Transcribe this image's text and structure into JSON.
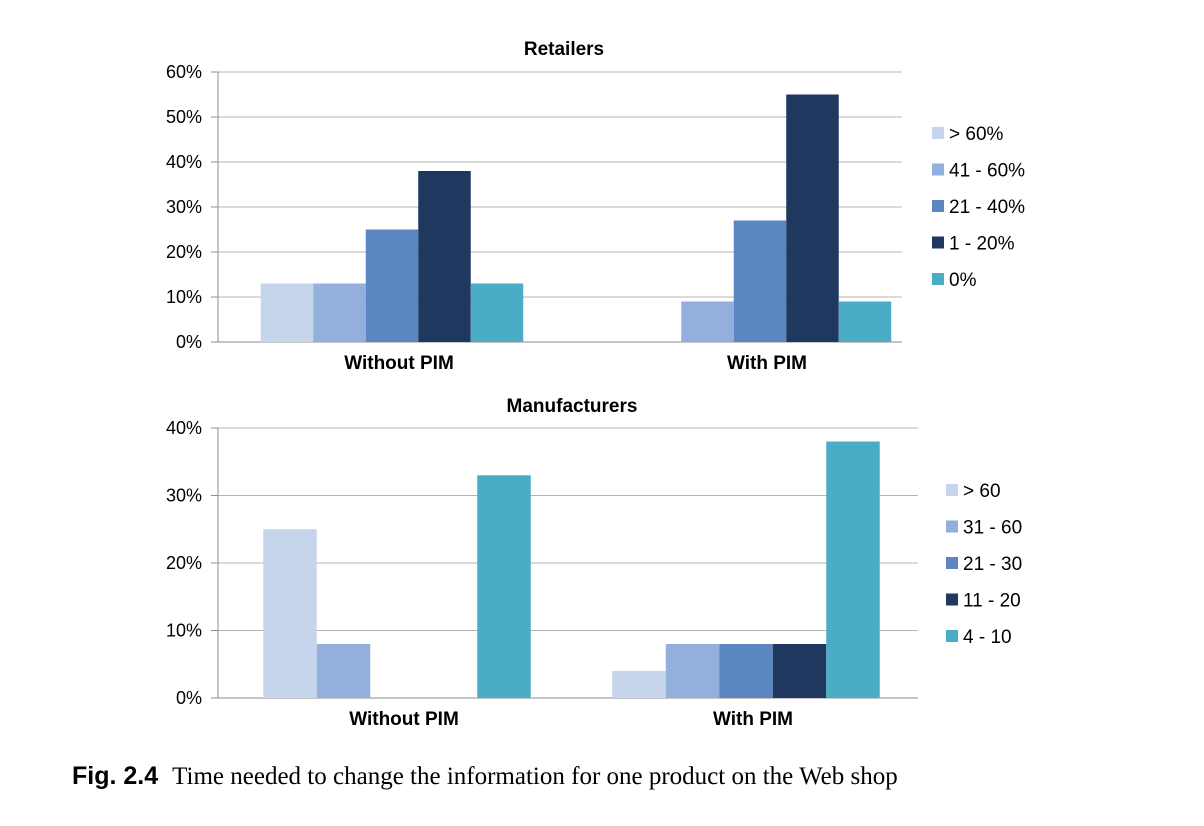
{
  "chart_data": [
    {
      "type": "bar",
      "title": "Retailers",
      "categories": [
        "Without PIM",
        "With PIM"
      ],
      "series": [
        {
          "name": "> 60%",
          "color": "#c6d5ec",
          "values": [
            13,
            0
          ]
        },
        {
          "name": "41 - 60%",
          "color": "#93b0dc",
          "values": [
            13,
            9
          ]
        },
        {
          "name": "21 - 40%",
          "color": "#5b86c2",
          "values": [
            25,
            27
          ]
        },
        {
          "name": "1 - 20%",
          "color": "#1f3860",
          "values": [
            38,
            55
          ]
        },
        {
          "name": "0%",
          "color": "#4bacc6",
          "values": [
            13,
            9
          ]
        }
      ],
      "ylim": [
        0,
        60
      ],
      "ytick_step": 10,
      "ytick_format": "percent",
      "xlabel": "",
      "ylabel": "",
      "grid": true,
      "legend": "right"
    },
    {
      "type": "bar",
      "title": "Manufacturers",
      "categories": [
        "Without PIM",
        "With PIM"
      ],
      "series": [
        {
          "name": "> 60",
          "color": "#c6d5ec",
          "values": [
            25,
            4
          ]
        },
        {
          "name": "31 - 60",
          "color": "#93b0dc",
          "values": [
            8,
            8
          ]
        },
        {
          "name": "21 - 30",
          "color": "#5b86c2",
          "values": [
            0,
            8
          ]
        },
        {
          "name": "11 - 20",
          "color": "#1f3860",
          "values": [
            0,
            8
          ]
        },
        {
          "name": "4 - 10",
          "color": "#4bacc6",
          "values": [
            33,
            38
          ]
        }
      ],
      "ylim": [
        0,
        40
      ],
      "ytick_step": 10,
      "ytick_format": "percent",
      "xlabel": "",
      "ylabel": "",
      "grid": true,
      "legend": "right"
    }
  ],
  "caption": {
    "label": "Fig. 2.4",
    "text": "Time needed to change the information for one product on the Web shop"
  }
}
